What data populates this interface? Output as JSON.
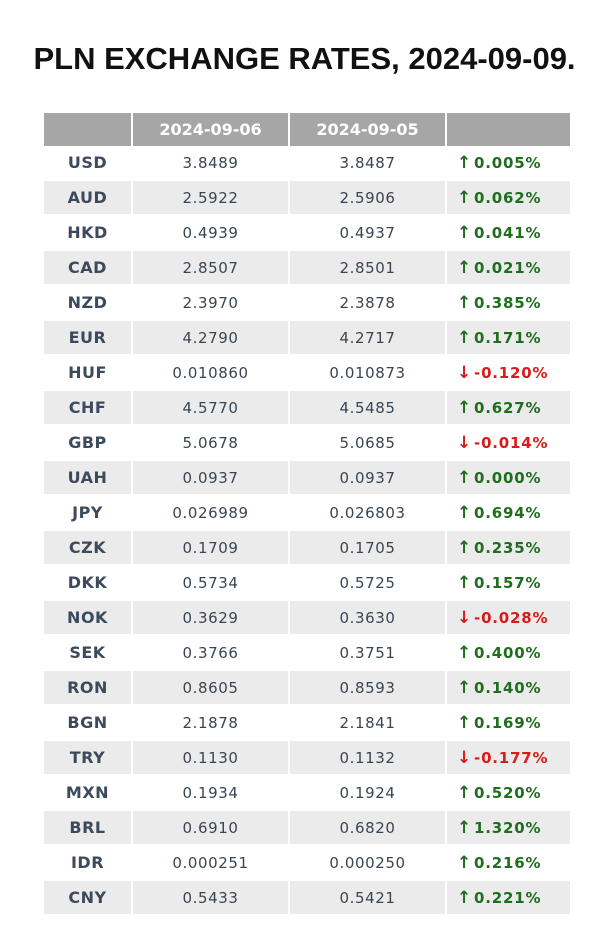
{
  "title": "PLN EXCHANGE RATES, 2024-09-09.",
  "colors": {
    "header_bg": "#a6a6a6",
    "row_alt_bg": "#ebebeb",
    "up": "#1e6e1e",
    "down": "#d81b1b"
  },
  "icons": {
    "up": "↑",
    "down": "↓"
  },
  "chart_data": {
    "type": "table",
    "title": "PLN EXCHANGE RATES, 2024-09-09.",
    "columns": [
      "",
      "2024-09-06",
      "2024-09-05",
      ""
    ],
    "rows": [
      {
        "currency": "USD",
        "rate_new": "3.8489",
        "rate_old": "3.8487",
        "change": "0.005%",
        "direction": "up"
      },
      {
        "currency": "AUD",
        "rate_new": "2.5922",
        "rate_old": "2.5906",
        "change": "0.062%",
        "direction": "up"
      },
      {
        "currency": "HKD",
        "rate_new": "0.4939",
        "rate_old": "0.4937",
        "change": "0.041%",
        "direction": "up"
      },
      {
        "currency": "CAD",
        "rate_new": "2.8507",
        "rate_old": "2.8501",
        "change": "0.021%",
        "direction": "up"
      },
      {
        "currency": "NZD",
        "rate_new": "2.3970",
        "rate_old": "2.3878",
        "change": "0.385%",
        "direction": "up"
      },
      {
        "currency": "EUR",
        "rate_new": "4.2790",
        "rate_old": "4.2717",
        "change": "0.171%",
        "direction": "up"
      },
      {
        "currency": "HUF",
        "rate_new": "0.010860",
        "rate_old": "0.010873",
        "change": "-0.120%",
        "direction": "down"
      },
      {
        "currency": "CHF",
        "rate_new": "4.5770",
        "rate_old": "4.5485",
        "change": "0.627%",
        "direction": "up"
      },
      {
        "currency": "GBP",
        "rate_new": "5.0678",
        "rate_old": "5.0685",
        "change": "-0.014%",
        "direction": "down"
      },
      {
        "currency": "UAH",
        "rate_new": "0.0937",
        "rate_old": "0.0937",
        "change": "0.000%",
        "direction": "up"
      },
      {
        "currency": "JPY",
        "rate_new": "0.026989",
        "rate_old": "0.026803",
        "change": "0.694%",
        "direction": "up"
      },
      {
        "currency": "CZK",
        "rate_new": "0.1709",
        "rate_old": "0.1705",
        "change": "0.235%",
        "direction": "up"
      },
      {
        "currency": "DKK",
        "rate_new": "0.5734",
        "rate_old": "0.5725",
        "change": "0.157%",
        "direction": "up"
      },
      {
        "currency": "NOK",
        "rate_new": "0.3629",
        "rate_old": "0.3630",
        "change": "-0.028%",
        "direction": "down"
      },
      {
        "currency": "SEK",
        "rate_new": "0.3766",
        "rate_old": "0.3751",
        "change": "0.400%",
        "direction": "up"
      },
      {
        "currency": "RON",
        "rate_new": "0.8605",
        "rate_old": "0.8593",
        "change": "0.140%",
        "direction": "up"
      },
      {
        "currency": "BGN",
        "rate_new": "2.1878",
        "rate_old": "2.1841",
        "change": "0.169%",
        "direction": "up"
      },
      {
        "currency": "TRY",
        "rate_new": "0.1130",
        "rate_old": "0.1132",
        "change": "-0.177%",
        "direction": "down"
      },
      {
        "currency": "MXN",
        "rate_new": "0.1934",
        "rate_old": "0.1924",
        "change": "0.520%",
        "direction": "up"
      },
      {
        "currency": "BRL",
        "rate_new": "0.6910",
        "rate_old": "0.6820",
        "change": "1.320%",
        "direction": "up"
      },
      {
        "currency": "IDR",
        "rate_new": "0.000251",
        "rate_old": "0.000250",
        "change": "0.216%",
        "direction": "up"
      },
      {
        "currency": "CNY",
        "rate_new": "0.5433",
        "rate_old": "0.5421",
        "change": "0.221%",
        "direction": "up"
      }
    ]
  }
}
